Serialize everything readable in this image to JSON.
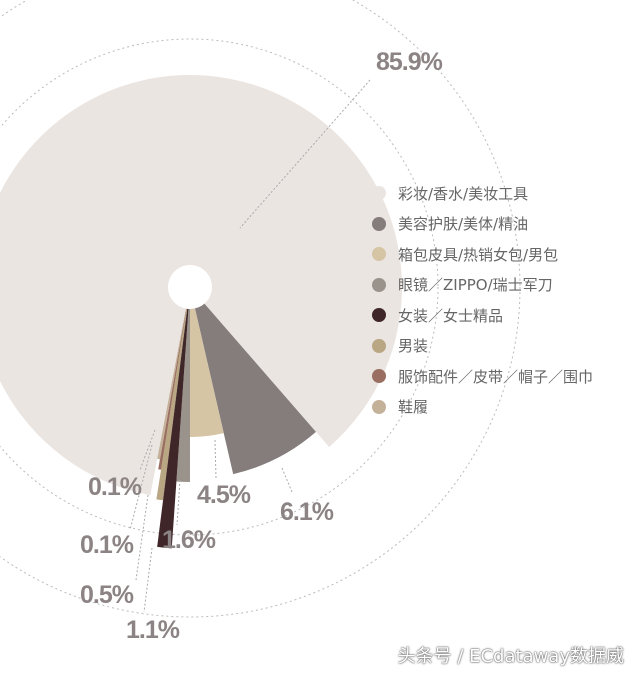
{
  "chart_data": {
    "type": "rose",
    "title": "",
    "series": [
      {
        "name": "彩妆/香水/美妆工具",
        "value": 85.9,
        "label": "85.9%",
        "color": "#ebe5e2"
      },
      {
        "name": "美容护肤/美体/精油",
        "value": 6.1,
        "label": "6.1%",
        "color": "#857c7c"
      },
      {
        "name": "箱包皮具/热销女包/男包",
        "value": 4.5,
        "label": "4.5%",
        "color": "#d5c5a5"
      },
      {
        "name": "眼镜／ZIPPO/瑞士军刀",
        "value": 1.6,
        "label": "1.6%",
        "color": "#9a938b"
      },
      {
        "name": "女装／女士精品",
        "value": 1.1,
        "label": "1.1%",
        "color": "#3f2629"
      },
      {
        "name": "男装",
        "value": 0.5,
        "label": "0.5%",
        "color": "#b9a683"
      },
      {
        "name": "服饰配件／皮带／帽子／围巾",
        "value": 0.1,
        "label": "0.1%",
        "color": "#9a6f62"
      },
      {
        "name": "鞋履",
        "value": 0.1,
        "label": "0.1%",
        "color": "#c4b19a"
      }
    ],
    "legend_position": "right"
  },
  "watermark": "头条号 / ECdataway数据威"
}
